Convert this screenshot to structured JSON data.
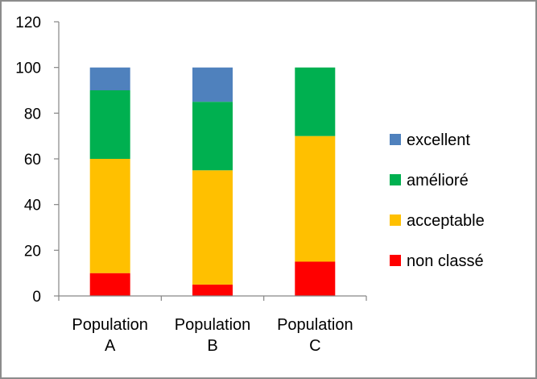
{
  "chart_data": {
    "type": "bar",
    "stacked": true,
    "categories": [
      [
        "Population",
        "A"
      ],
      [
        "Population",
        "B"
      ],
      [
        "Population",
        "C"
      ]
    ],
    "series": [
      {
        "name": "non classé",
        "values": [
          10,
          5,
          15
        ],
        "color": "#ff0000"
      },
      {
        "name": "acceptable",
        "values": [
          50,
          50,
          55
        ],
        "color": "#ffc000"
      },
      {
        "name": "amélioré",
        "values": [
          30,
          30,
          30
        ],
        "color": "#00b050"
      },
      {
        "name": "excellent",
        "values": [
          10,
          15,
          0
        ],
        "color": "#4f81bd"
      }
    ],
    "legend_order": [
      "excellent",
      "amélioré",
      "acceptable",
      "non classé"
    ],
    "legend_position": "right",
    "ylim": [
      0,
      120
    ],
    "yticks": [
      0,
      20,
      40,
      60,
      80,
      100,
      120
    ],
    "grid": false,
    "title": "",
    "xlabel": "",
    "ylabel": ""
  }
}
